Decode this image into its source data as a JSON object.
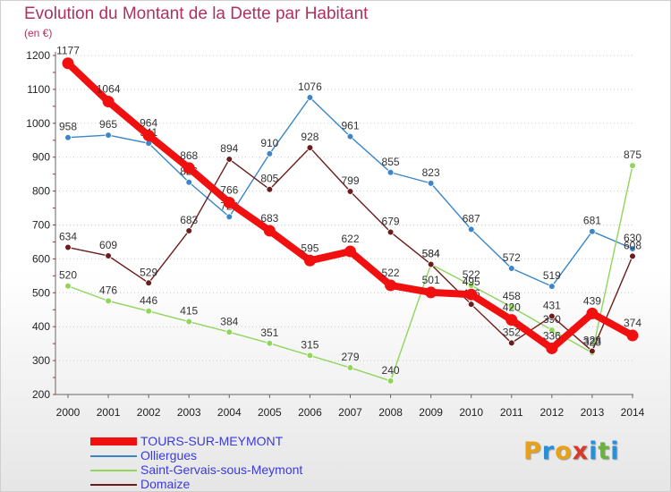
{
  "header": {
    "title": "Evolution du Montant de la Dette par Habitant",
    "unit": "(en €)"
  },
  "logo": {
    "letters": [
      "P",
      "r",
      "o",
      "x",
      "i",
      "t",
      "i"
    ],
    "colors": [
      "#e8a21a",
      "#2a8fd6",
      "#e8a21a",
      "#d63b2a",
      "#2a8fd6",
      "#6ab43a",
      "#2a8fd6"
    ]
  },
  "chart_data": {
    "type": "line",
    "title": "Evolution du Montant de la Dette par Habitant",
    "ylabel": "(en €)",
    "xlabel": "",
    "x": [
      "2000",
      "2001",
      "2002",
      "2003",
      "2004",
      "2005",
      "2006",
      "2007",
      "2008",
      "2009",
      "2010",
      "2011",
      "2012",
      "2013",
      "2014"
    ],
    "ylim": [
      200,
      1200
    ],
    "yticks": [
      "200",
      "300",
      "400",
      "500",
      "600",
      "700",
      "800",
      "900",
      "1000",
      "1100",
      "1200"
    ],
    "grid": "horizontal dotted",
    "legend_position": "bottom-left",
    "series": [
      {
        "name": "Olliergues",
        "color": "#3a86c8",
        "values": [
          958,
          965,
          941,
          826,
          724,
          910,
          1076,
          961,
          855,
          823,
          687,
          572,
          519,
          681,
          630
        ],
        "labels": [
          "958",
          "965",
          "941",
          "826",
          "724",
          "910",
          "1076",
          "961",
          "855",
          "823",
          "687",
          "572",
          "519",
          "681",
          "630"
        ]
      },
      {
        "name": "Saint-Gervais-sous-Meymont",
        "color": "#8fd65a",
        "values": [
          520,
          476,
          446,
          415,
          384,
          351,
          315,
          279,
          240,
          584,
          522,
          458,
          390,
          323,
          875
        ],
        "labels": [
          "520",
          "476",
          "446",
          "415",
          "384",
          "351",
          "315",
          "279",
          "240",
          "584",
          "522",
          "458",
          "390",
          "323",
          "875"
        ]
      },
      {
        "name": "Domaize",
        "color": "#6b1c1c",
        "values": [
          634,
          609,
          529,
          683,
          894,
          805,
          928,
          799,
          679,
          584,
          466,
          352,
          431,
          328,
          608
        ],
        "labels": [
          "634",
          "609",
          "529",
          "683",
          "894",
          "805",
          "928",
          "799",
          "679",
          "584",
          "466",
          "352",
          "431",
          "328",
          "608"
        ]
      },
      {
        "name": "TOURS-SUR-MEYMONT",
        "color": "#f01010",
        "emphasis": true,
        "values": [
          1177,
          1064,
          964,
          868,
          766,
          683,
          595,
          622,
          522,
          501,
          495,
          420,
          336,
          439,
          374
        ],
        "labels": [
          "1177",
          "1064",
          "964",
          "868",
          "766",
          "683",
          "595",
          "622",
          "522",
          "501",
          "495",
          "420",
          "336",
          "439",
          "374"
        ]
      }
    ],
    "legend": [
      {
        "name": "TOURS-SUR-MEYMONT",
        "color": "#f01010",
        "thick": true
      },
      {
        "name": "Olliergues",
        "color": "#3a86c8",
        "thick": false
      },
      {
        "name": "Saint-Gervais-sous-Meymont",
        "color": "#8fd65a",
        "thick": false
      },
      {
        "name": "Domaize",
        "color": "#6b1c1c",
        "thick": false
      }
    ]
  }
}
